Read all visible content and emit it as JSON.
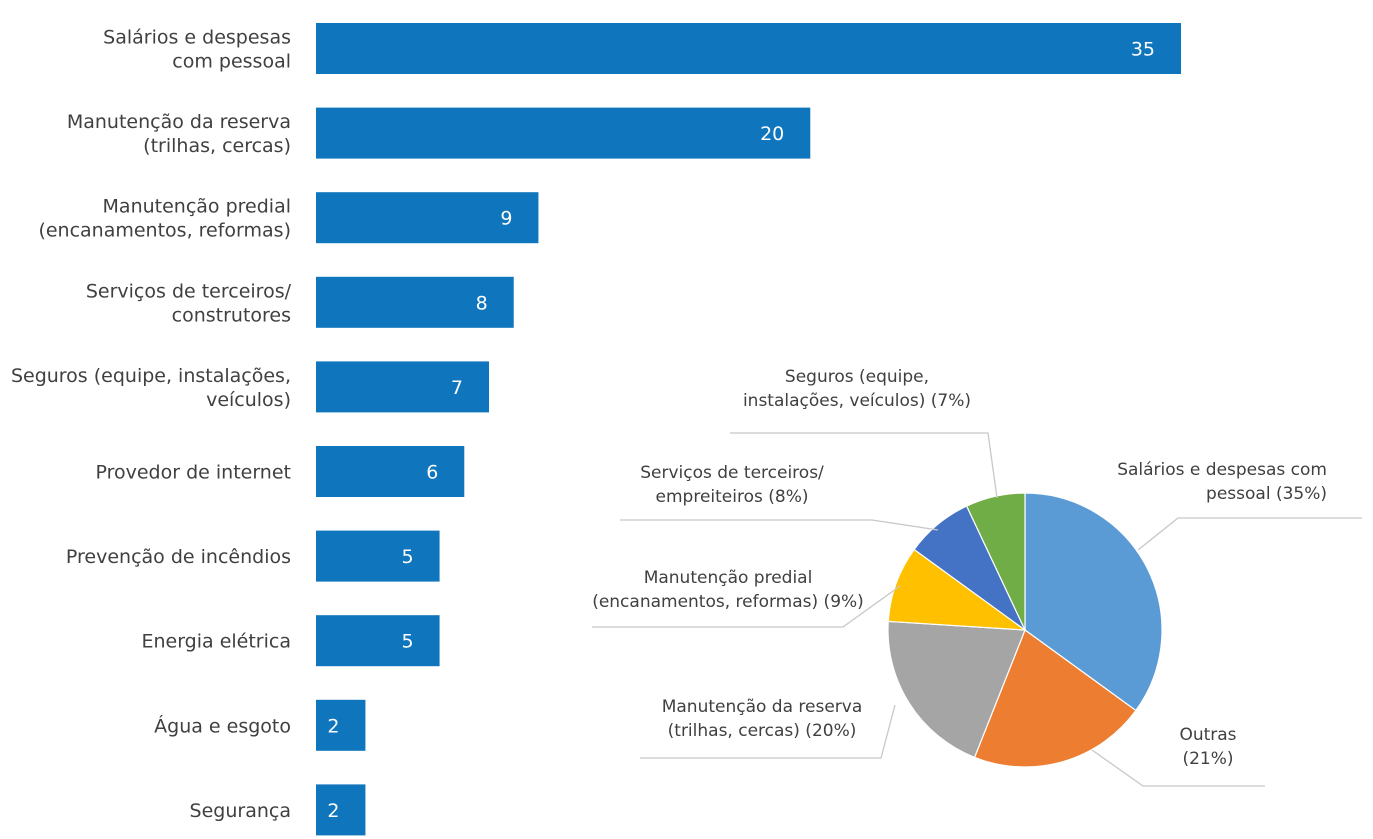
{
  "chart_data": [
    {
      "type": "bar",
      "orientation": "horizontal",
      "categories": [
        [
          "Salários e despesas",
          "com pessoal"
        ],
        [
          "Manutenção da reserva",
          "(trilhas, cercas)"
        ],
        [
          "Manutenção predial",
          "(encanamentos, reformas)"
        ],
        [
          "Serviços de terceiros/",
          "construtores"
        ],
        [
          "Seguros (equipe, instalações,",
          "veículos)"
        ],
        [
          "Provedor de internet"
        ],
        [
          "Prevenção de incêndios"
        ],
        [
          "Energia elétrica"
        ],
        [
          "Água e esgoto"
        ],
        [
          "Segurança"
        ]
      ],
      "values": [
        35,
        20,
        9,
        8,
        7,
        6,
        5,
        5,
        2,
        2
      ],
      "data_labels": [
        "35",
        "20",
        "9",
        "8",
        "7",
        "6",
        "5",
        "5",
        "2",
        "2"
      ],
      "xlim": [
        0,
        35
      ],
      "grid": false,
      "color": "#0F75BC"
    },
    {
      "type": "pie",
      "start": "top",
      "direction": "clockwise",
      "slices": [
        {
          "label": [
            "Salários e despesas com",
            "pessoal (35%)"
          ],
          "value": 35,
          "color": "#5B9BD5"
        },
        {
          "label": [
            "Outras",
            "(21%)"
          ],
          "value": 21,
          "color": "#ED7D31"
        },
        {
          "label": [
            "Manutenção da reserva",
            "(trilhas, cercas) (20%)"
          ],
          "value": 20,
          "color": "#A5A5A5"
        },
        {
          "label": [
            "Manutenção predial",
            "(encanamentos, reformas) (9%)"
          ],
          "value": 9,
          "color": "#FFC000"
        },
        {
          "label": [
            "Serviços de terceiros/",
            "empreiteiros (8%)"
          ],
          "value": 8,
          "color": "#4472C4"
        },
        {
          "label": [
            "Seguros (equipe,",
            "instalações, veículos) (7%)"
          ],
          "value": 7,
          "color": "#70AD47"
        }
      ]
    }
  ]
}
